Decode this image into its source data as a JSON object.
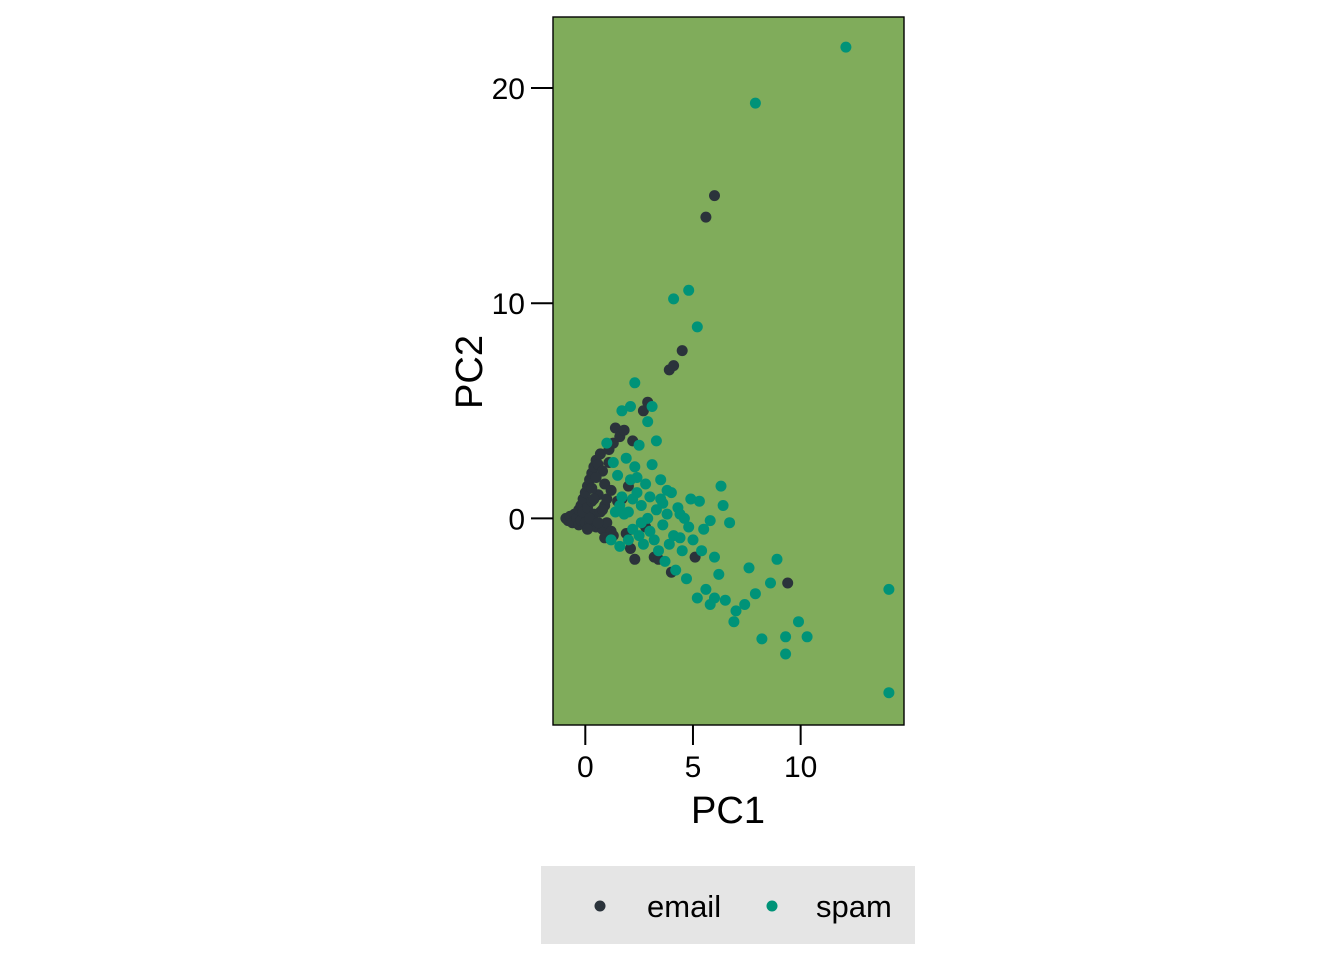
{
  "colors": {
    "panel": "#80AC5B",
    "email": "#2B333B",
    "spam": "#009378",
    "legend_bg": "#E5E5E5",
    "axis": "#000000"
  },
  "chart_data": {
    "type": "scatter",
    "title": "",
    "xlabel": "PC1",
    "ylabel": "PC2",
    "xlim": [
      -1.5,
      14.8
    ],
    "ylim": [
      -9.6,
      23.3
    ],
    "x_ticks": [
      0,
      5,
      10
    ],
    "x_tick_labels": [
      "0",
      "5",
      "10"
    ],
    "y_ticks": [
      0,
      10,
      20
    ],
    "y_tick_labels": [
      "0",
      "10",
      "20"
    ],
    "grid": false,
    "legend": {
      "position": "bottom",
      "entries": [
        "email",
        "spam"
      ]
    },
    "series": [
      {
        "name": "email",
        "color": "#2B333B",
        "points": [
          [
            -0.9,
            0.0
          ],
          [
            -0.8,
            -0.1
          ],
          [
            -0.7,
            0.1
          ],
          [
            -0.6,
            -0.2
          ],
          [
            -0.5,
            0.2
          ],
          [
            -0.4,
            0.0
          ],
          [
            -0.3,
            0.4
          ],
          [
            -0.3,
            -0.3
          ],
          [
            -0.2,
            0.6
          ],
          [
            -0.2,
            -0.1
          ],
          [
            -0.1,
            0.9
          ],
          [
            -0.1,
            0.3
          ],
          [
            0.0,
            1.2
          ],
          [
            0.0,
            -0.2
          ],
          [
            0.1,
            1.5
          ],
          [
            0.1,
            0.5
          ],
          [
            0.2,
            1.8
          ],
          [
            0.2,
            -0.3
          ],
          [
            0.3,
            2.1
          ],
          [
            0.3,
            0.8
          ],
          [
            0.4,
            2.4
          ],
          [
            0.4,
            0.2
          ],
          [
            0.5,
            2.7
          ],
          [
            0.5,
            -0.4
          ],
          [
            0.6,
            2.5
          ],
          [
            0.6,
            1.1
          ],
          [
            0.7,
            3.0
          ],
          [
            0.7,
            0.3
          ],
          [
            0.8,
            2.2
          ],
          [
            0.8,
            -0.5
          ],
          [
            0.9,
            1.6
          ],
          [
            0.9,
            0.6
          ],
          [
            1.0,
            0.9
          ],
          [
            1.0,
            -0.2
          ],
          [
            1.1,
            3.2
          ],
          [
            1.2,
            -0.6
          ],
          [
            0.2,
            0.0
          ],
          [
            0.4,
            0.9
          ],
          [
            0.1,
            -0.5
          ],
          [
            0.6,
            -0.2
          ],
          [
            0.3,
            1.4
          ],
          [
            0.5,
            1.9
          ],
          [
            0.8,
            0.4
          ],
          [
            1.1,
            2.6
          ],
          [
            1.3,
            3.5
          ],
          [
            1.4,
            4.2
          ],
          [
            1.6,
            3.8
          ],
          [
            1.8,
            4.1
          ],
          [
            1.5,
            0.8
          ],
          [
            1.7,
            0.9
          ],
          [
            2.0,
            1.5
          ],
          [
            2.2,
            3.6
          ],
          [
            2.7,
            5.0
          ],
          [
            2.9,
            5.4
          ],
          [
            1.9,
            -0.7
          ],
          [
            2.1,
            -1.4
          ],
          [
            2.3,
            -1.9
          ],
          [
            3.2,
            -1.8
          ],
          [
            3.4,
            -1.9
          ],
          [
            4.0,
            -2.5
          ],
          [
            5.1,
            -1.8
          ],
          [
            9.4,
            -3.0
          ],
          [
            3.9,
            6.9
          ],
          [
            4.1,
            7.1
          ],
          [
            4.5,
            7.8
          ],
          [
            5.6,
            14.0
          ],
          [
            6.0,
            15.0
          ],
          [
            1.2,
            1.3
          ],
          [
            0.9,
            -0.9
          ],
          [
            1.3,
            -0.8
          ],
          [
            2.8,
            -0.4
          ]
        ]
      },
      {
        "name": "spam",
        "color": "#009378",
        "points": [
          [
            1.5,
            2.0
          ],
          [
            1.7,
            1.0
          ],
          [
            1.9,
            2.8
          ],
          [
            2.0,
            0.3
          ],
          [
            2.1,
            1.8
          ],
          [
            2.2,
            -0.5
          ],
          [
            2.3,
            2.4
          ],
          [
            2.4,
            1.2
          ],
          [
            2.5,
            -0.8
          ],
          [
            2.6,
            0.6
          ],
          [
            2.7,
            -1.2
          ],
          [
            2.8,
            1.6
          ],
          [
            2.9,
            0.0
          ],
          [
            3.0,
            -0.6
          ],
          [
            3.1,
            2.5
          ],
          [
            3.2,
            -1.0
          ],
          [
            3.3,
            0.4
          ],
          [
            3.4,
            -1.5
          ],
          [
            3.5,
            0.9
          ],
          [
            3.6,
            -0.3
          ],
          [
            3.7,
            -2.0
          ],
          [
            3.8,
            0.2
          ],
          [
            3.9,
            -1.2
          ],
          [
            4.0,
            1.2
          ],
          [
            4.1,
            -0.8
          ],
          [
            4.2,
            -2.4
          ],
          [
            4.3,
            0.5
          ],
          [
            4.5,
            -1.5
          ],
          [
            4.6,
            0.0
          ],
          [
            4.7,
            -2.8
          ],
          [
            4.8,
            -0.4
          ],
          [
            5.0,
            -1.0
          ],
          [
            5.2,
            -3.7
          ],
          [
            5.4,
            -1.5
          ],
          [
            5.6,
            -3.3
          ],
          [
            5.8,
            -4.0
          ],
          [
            6.0,
            -3.7
          ],
          [
            6.2,
            -2.6
          ],
          [
            6.3,
            1.5
          ],
          [
            6.5,
            -3.8
          ],
          [
            6.7,
            -0.2
          ],
          [
            7.4,
            -4.0
          ],
          [
            7.6,
            -2.3
          ],
          [
            7.9,
            -3.5
          ],
          [
            8.2,
            -5.6
          ],
          [
            8.9,
            -1.9
          ],
          [
            9.3,
            -5.5
          ],
          [
            9.3,
            -6.3
          ],
          [
            9.9,
            -4.8
          ],
          [
            10.3,
            -5.5
          ],
          [
            14.1,
            -3.3
          ],
          [
            14.1,
            -8.1
          ],
          [
            2.3,
            6.3
          ],
          [
            2.1,
            5.2
          ],
          [
            1.7,
            5.0
          ],
          [
            3.1,
            5.2
          ],
          [
            3.3,
            3.6
          ],
          [
            3.8,
            1.3
          ],
          [
            5.2,
            8.9
          ],
          [
            4.1,
            10.2
          ],
          [
            4.8,
            10.6
          ],
          [
            7.9,
            19.3
          ],
          [
            12.1,
            21.9
          ],
          [
            1.0,
            3.5
          ],
          [
            1.3,
            2.6
          ],
          [
            1.8,
            0.2
          ],
          [
            2.0,
            -1.0
          ],
          [
            1.6,
            -1.3
          ],
          [
            1.2,
            -1.0
          ],
          [
            2.5,
            3.4
          ],
          [
            2.9,
            4.5
          ],
          [
            3.5,
            1.8
          ],
          [
            4.4,
            0.2
          ],
          [
            5.3,
            0.8
          ],
          [
            5.5,
            -0.5
          ],
          [
            6.0,
            -1.8
          ],
          [
            7.0,
            -4.3
          ],
          [
            6.9,
            -4.8
          ],
          [
            8.6,
            -3.0
          ],
          [
            3.0,
            1.0
          ],
          [
            4.9,
            0.9
          ],
          [
            1.4,
            0.3
          ],
          [
            1.6,
            0.6
          ],
          [
            2.2,
            0.9
          ],
          [
            2.6,
            -0.2
          ],
          [
            3.6,
            0.7
          ],
          [
            4.4,
            -0.9
          ],
          [
            5.8,
            -0.1
          ],
          [
            6.4,
            0.6
          ],
          [
            2.4,
            1.9
          ]
        ]
      }
    ]
  }
}
